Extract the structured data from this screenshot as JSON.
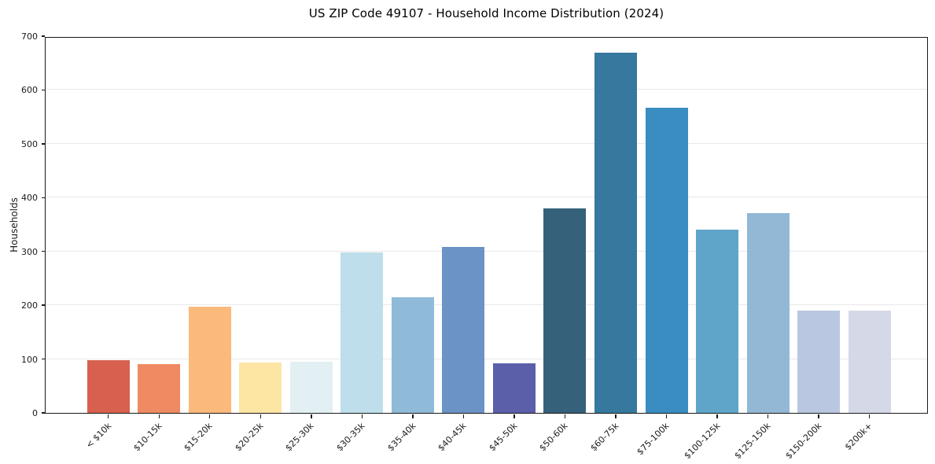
{
  "chart_data": {
    "type": "bar",
    "title": "US ZIP Code 49107 - Household Income Distribution (2024)",
    "xlabel": "",
    "ylabel": "Households",
    "categories": [
      "< $10k",
      "$10-15k",
      "$15-20k",
      "$20-25k",
      "$25-30k",
      "$30-35k",
      "$35-40k",
      "$40-45k",
      "$45-50k",
      "$50-60k",
      "$60-75k",
      "$75-100k",
      "$100-125k",
      "$125-150k",
      "$150-200k",
      "$200k+"
    ],
    "values": [
      98,
      90,
      198,
      93,
      95,
      298,
      215,
      308,
      92,
      380,
      670,
      567,
      340,
      371,
      190,
      190
    ],
    "bar_colors": [
      "#d7604f",
      "#f08a62",
      "#fcb97c",
      "#fde5a4",
      "#e2f0f3",
      "#bddeea",
      "#8fbad8",
      "#6b93c5",
      "#5b5ea9",
      "#35617a",
      "#36789e",
      "#398dc0",
      "#5ea5c9",
      "#92b8d6",
      "#b9c7e0",
      "#d5d8e6"
    ],
    "ylim": [
      0,
      700
    ],
    "yticks": [
      0,
      100,
      200,
      300,
      400,
      500,
      600,
      700
    ],
    "grid": "horizontal",
    "legend": "none"
  },
  "style_colors": {
    "grid": "#e8e8e8",
    "spine": "#1a1a1a",
    "tick": "#1a1a1a",
    "background": "#ffffff"
  }
}
